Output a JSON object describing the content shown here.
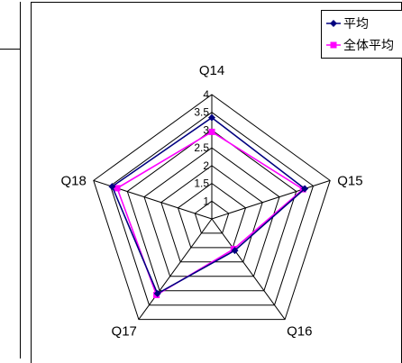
{
  "chart_data": {
    "type": "radar",
    "categories": [
      "Q14",
      "Q15",
      "Q16",
      "Q17",
      "Q18"
    ],
    "rlim": [
      0.5,
      4
    ],
    "ticks": [
      1,
      1.5,
      2,
      2.5,
      3,
      3.5,
      4
    ],
    "tick_labels": [
      "1",
      "1.5",
      "2",
      "2.5",
      "3",
      "3.5",
      "4"
    ],
    "grid": true,
    "legend_position": "top-right",
    "series": [
      {
        "name": "平均",
        "values": [
          3.35,
          3.25,
          1.6,
          3.1,
          3.45
        ],
        "color": "#000080",
        "marker": "diamond"
      },
      {
        "name": "全体平均",
        "values": [
          2.95,
          3.2,
          1.55,
          3.15,
          3.3
        ],
        "color": "#ff00ff",
        "marker": "square"
      }
    ]
  }
}
